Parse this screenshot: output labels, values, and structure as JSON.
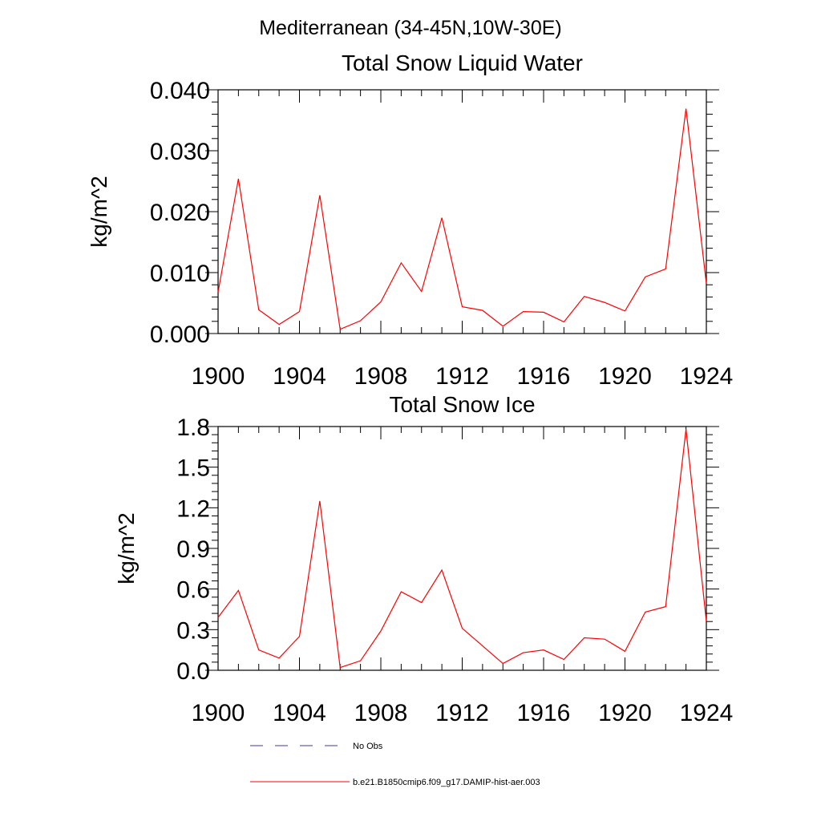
{
  "suptitle": "Mediterranean (34-45N,10W-30E)",
  "legend": {
    "placement": "bottom",
    "entries": [
      {
        "label": "No Obs",
        "color": "#3b3b8f",
        "dash": true
      },
      {
        "label": "b.e21.B1850cmip6.f09_g17.DAMIP-hist-aer.003",
        "color": "#ff0000",
        "dash": false
      }
    ]
  },
  "chart_data": [
    {
      "type": "line",
      "title": "Total Snow Liquid Water",
      "xlabel": "",
      "ylabel": "kg/m^2",
      "xlim": [
        1900,
        1924
      ],
      "ylim": [
        0,
        0.04
      ],
      "xticks": [
        "1900",
        "1904",
        "1908",
        "1912",
        "1916",
        "1920",
        "1924"
      ],
      "yticks": [
        "0.000",
        "0.010",
        "0.020",
        "0.030",
        "0.040"
      ],
      "grid": false,
      "x": [
        1900,
        1901,
        1902,
        1903,
        1904,
        1905,
        1906,
        1907,
        1908,
        1909,
        1910,
        1911,
        1912,
        1913,
        1914,
        1915,
        1916,
        1917,
        1918,
        1919,
        1920,
        1921,
        1922,
        1923,
        1924
      ],
      "series": [
        {
          "name": "b.e21.B1850cmip6.f09_g17.DAMIP-hist-aer.003",
          "color": "#ff0000",
          "values": [
            0.0068,
            0.0254,
            0.0039,
            0.0015,
            0.0036,
            0.0227,
            0.0007,
            0.0021,
            0.0052,
            0.0116,
            0.0069,
            0.019,
            0.0044,
            0.0038,
            0.0012,
            0.0036,
            0.0035,
            0.0019,
            0.0061,
            0.0051,
            0.0037,
            0.0093,
            0.0106,
            0.0369,
            0.0082
          ]
        }
      ]
    },
    {
      "type": "line",
      "title": "Total Snow Ice",
      "xlabel": "",
      "ylabel": "kg/m^2",
      "xlim": [
        1900,
        1924
      ],
      "ylim": [
        0,
        1.8
      ],
      "xticks": [
        "1900",
        "1904",
        "1908",
        "1912",
        "1916",
        "1920",
        "1924"
      ],
      "yticks": [
        "0.0",
        "0.3",
        "0.6",
        "0.9",
        "1.2",
        "1.5",
        "1.8"
      ],
      "grid": false,
      "x": [
        1900,
        1901,
        1902,
        1903,
        1904,
        1905,
        1906,
        1907,
        1908,
        1909,
        1910,
        1911,
        1912,
        1913,
        1914,
        1915,
        1916,
        1917,
        1918,
        1919,
        1920,
        1921,
        1922,
        1923,
        1924
      ],
      "series": [
        {
          "name": "b.e21.B1850cmip6.f09_g17.DAMIP-hist-aer.003",
          "color": "#ff0000",
          "values": [
            0.39,
            0.59,
            0.15,
            0.09,
            0.25,
            1.25,
            0.02,
            0.07,
            0.29,
            0.58,
            0.5,
            0.74,
            0.31,
            0.18,
            0.05,
            0.13,
            0.15,
            0.08,
            0.24,
            0.23,
            0.14,
            0.43,
            0.47,
            1.78,
            0.36
          ]
        }
      ]
    }
  ]
}
